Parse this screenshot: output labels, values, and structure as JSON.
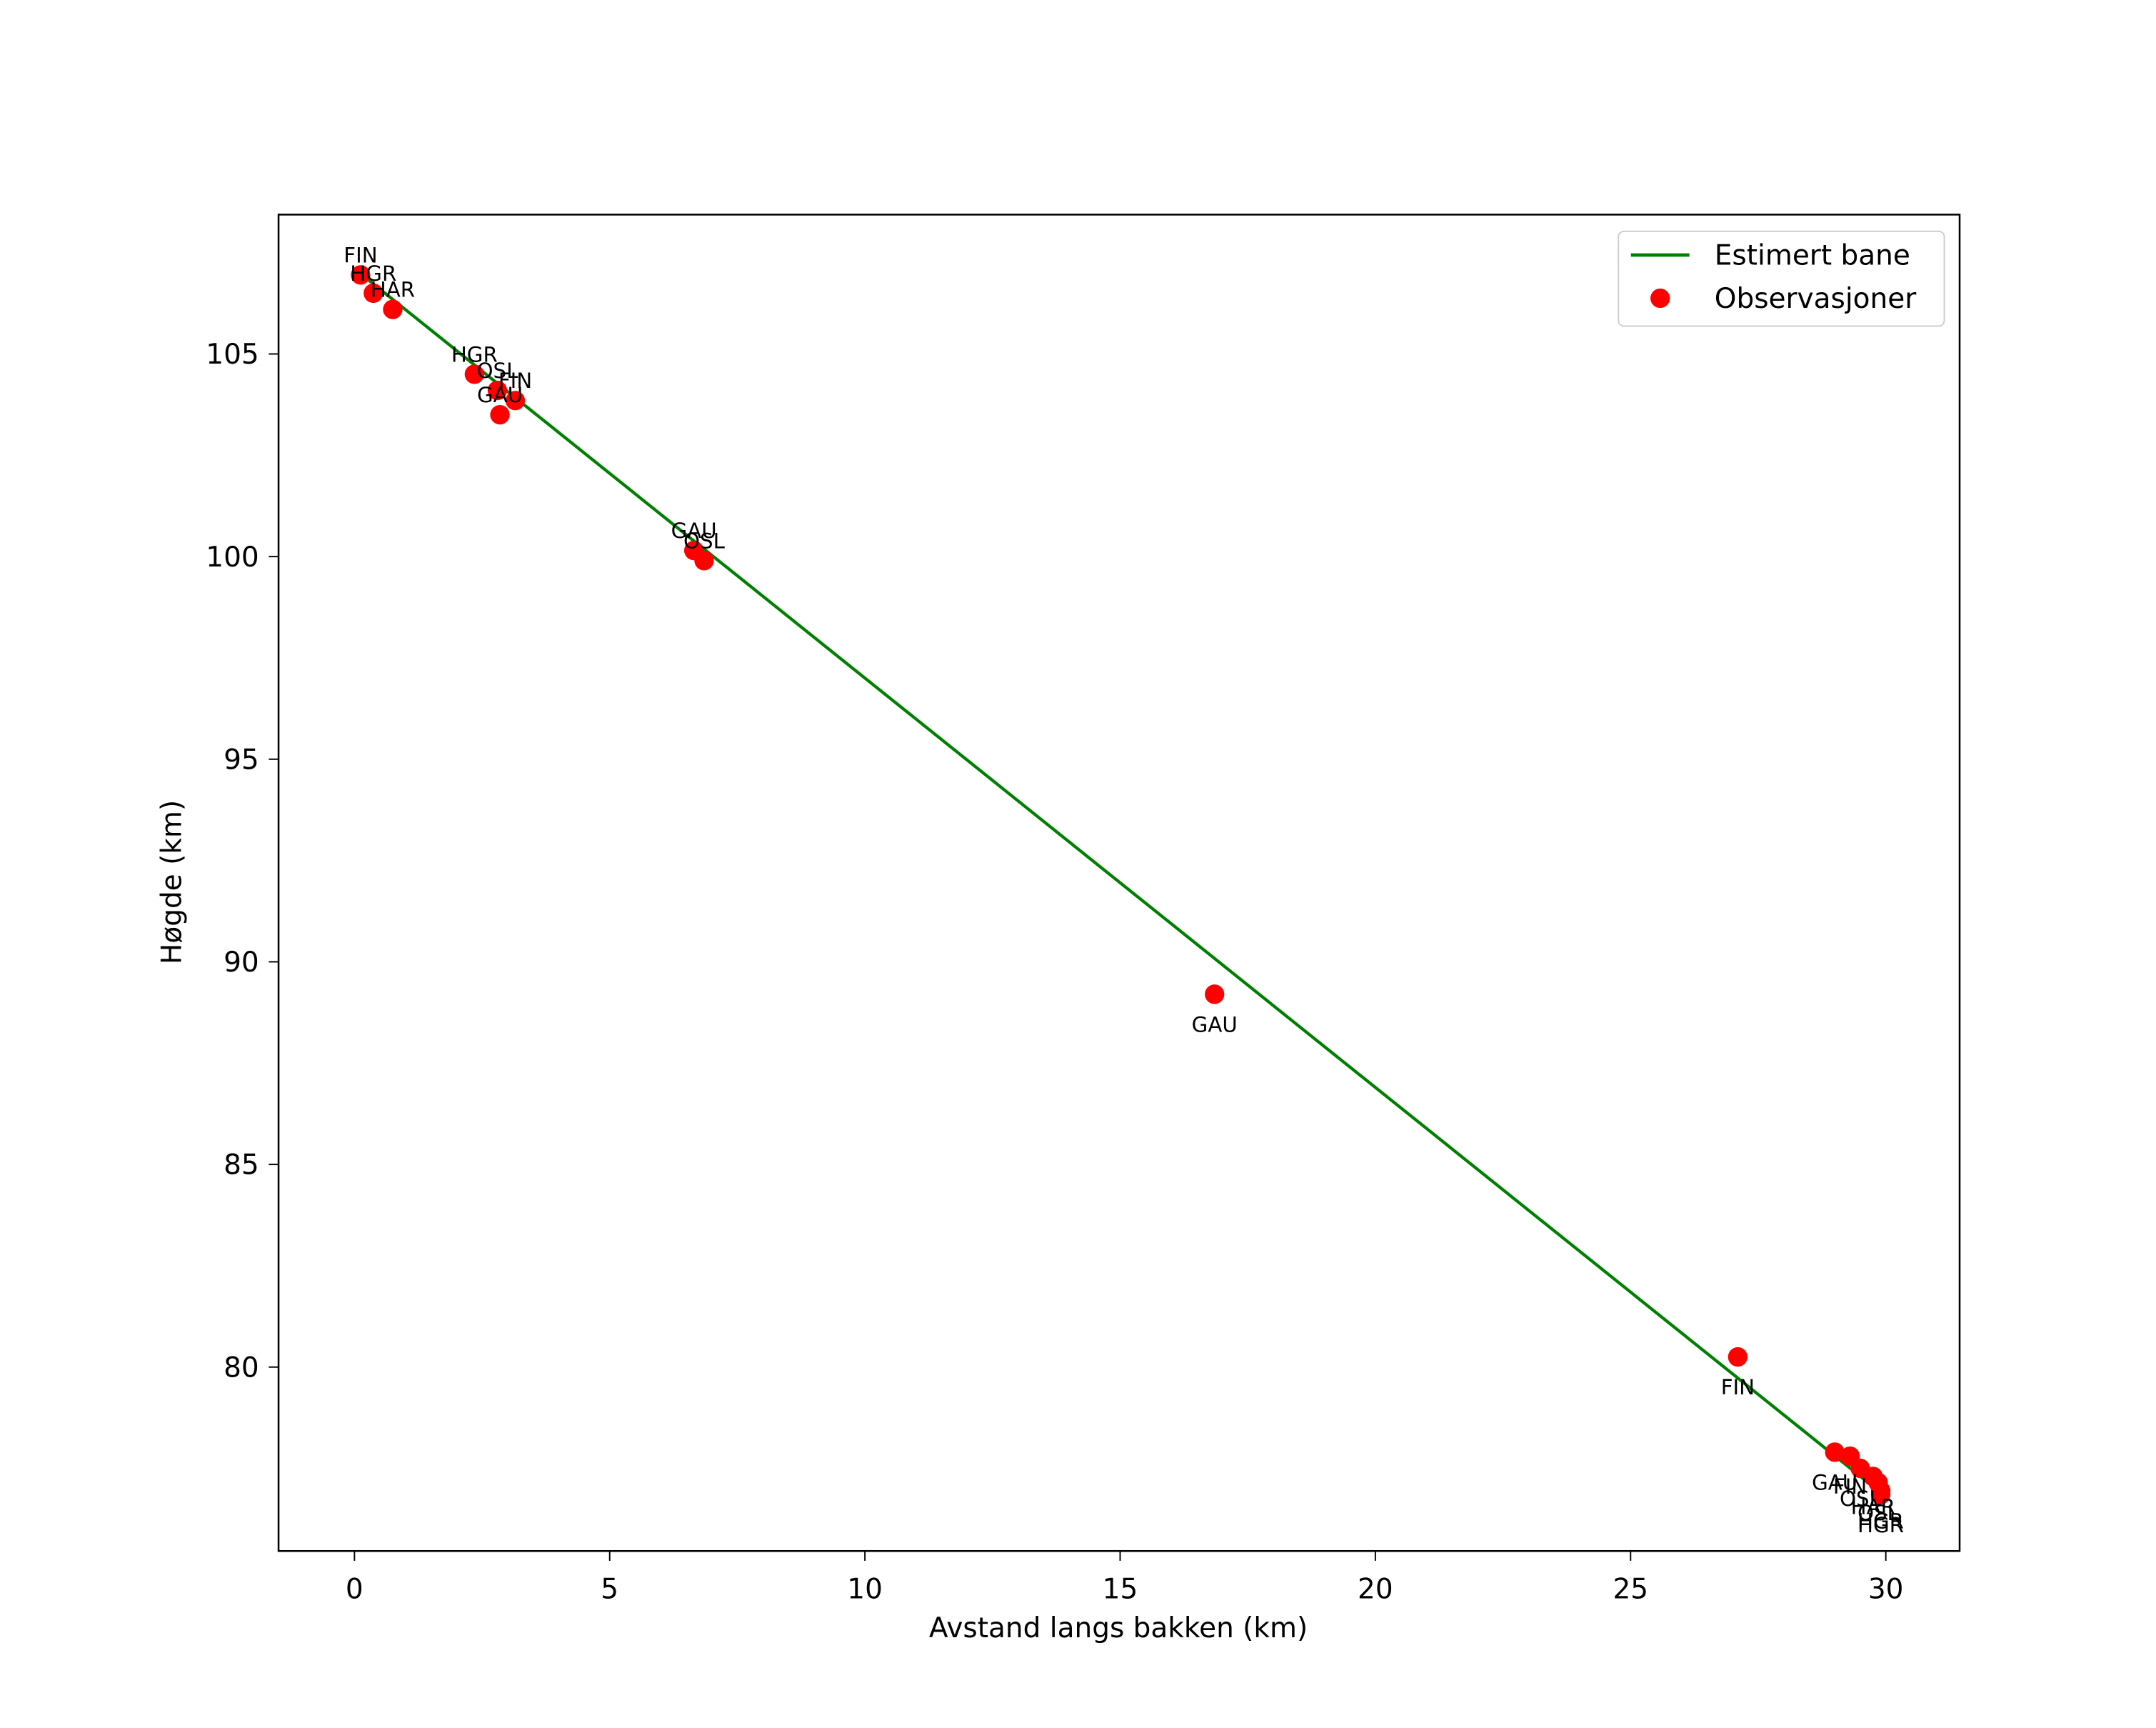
{
  "chart_data": {
    "type": "scatter",
    "title": "",
    "xlabel": "Avstand langs bakken (km)",
    "ylabel": "Høgde (km)",
    "xlim": [
      -1.5,
      31.5
    ],
    "ylim": [
      75.8,
      108.8
    ],
    "grid": false,
    "legend_position": "upper right",
    "x_ticks": [
      0,
      5,
      10,
      15,
      20,
      25,
      30
    ],
    "x_tick_labels": [
      "0",
      "5",
      "10",
      "15",
      "20",
      "25",
      "30"
    ],
    "y_ticks": [
      80,
      85,
      90,
      95,
      100,
      105
    ],
    "y_tick_labels": [
      "80",
      "85",
      "90",
      "95",
      "100",
      "105"
    ],
    "legend": [
      "Estimert bane",
      "Observasjoner"
    ],
    "colors": {
      "line": "#008000",
      "points": "#ff0000"
    },
    "series": [
      {
        "name": "Estimert bane",
        "type": "line",
        "x": [
          0.1,
          29.9
        ],
        "y": [
          107.0,
          76.9
        ]
      },
      {
        "name": "Observasjoner",
        "type": "scatter",
        "points": [
          {
            "x": 0.12,
            "y": 106.95,
            "label": "FIN",
            "label_pos": "above"
          },
          {
            "x": 0.37,
            "y": 106.5,
            "label": "HGR",
            "label_pos": "above"
          },
          {
            "x": 0.75,
            "y": 106.1,
            "label": "HAR",
            "label_pos": "above"
          },
          {
            "x": 2.35,
            "y": 104.5,
            "label": "HGR",
            "label_pos": "above"
          },
          {
            "x": 2.8,
            "y": 104.1,
            "label": "OSL",
            "label_pos": "above"
          },
          {
            "x": 3.15,
            "y": 103.85,
            "label": "FIN",
            "label_pos": "above"
          },
          {
            "x": 2.85,
            "y": 103.5,
            "label": "GAU",
            "label_pos": "above"
          },
          {
            "x": 6.65,
            "y": 100.15,
            "label": "GAU",
            "label_pos": "above"
          },
          {
            "x": 6.85,
            "y": 99.9,
            "label": "OSL",
            "label_pos": "above"
          },
          {
            "x": 16.85,
            "y": 89.2,
            "label": "GAU",
            "label_pos": "below"
          },
          {
            "x": 27.1,
            "y": 80.25,
            "label": "FIN",
            "label_pos": "below"
          },
          {
            "x": 29.0,
            "y": 77.9,
            "label": "GAU",
            "label_pos": "below"
          },
          {
            "x": 29.3,
            "y": 77.8,
            "label": "FIN",
            "label_pos": "below"
          },
          {
            "x": 29.5,
            "y": 77.5,
            "label": "OSL",
            "label_pos": "below"
          },
          {
            "x": 29.75,
            "y": 77.3,
            "label": "HAR",
            "label_pos": "below"
          },
          {
            "x": 29.85,
            "y": 77.15,
            "label": "OSL",
            "label_pos": "below"
          },
          {
            "x": 29.9,
            "y": 76.95,
            "label": "HGR",
            "label_pos": "below"
          },
          {
            "x": 29.9,
            "y": 76.85,
            "label": "HGR",
            "label_pos": "below"
          }
        ]
      }
    ]
  },
  "axes": {
    "xlabel": "Avstand langs bakken (km)",
    "ylabel": "Høgde (km)"
  },
  "legend": {
    "line_label": "Estimert bane",
    "points_label": "Observasjoner"
  }
}
